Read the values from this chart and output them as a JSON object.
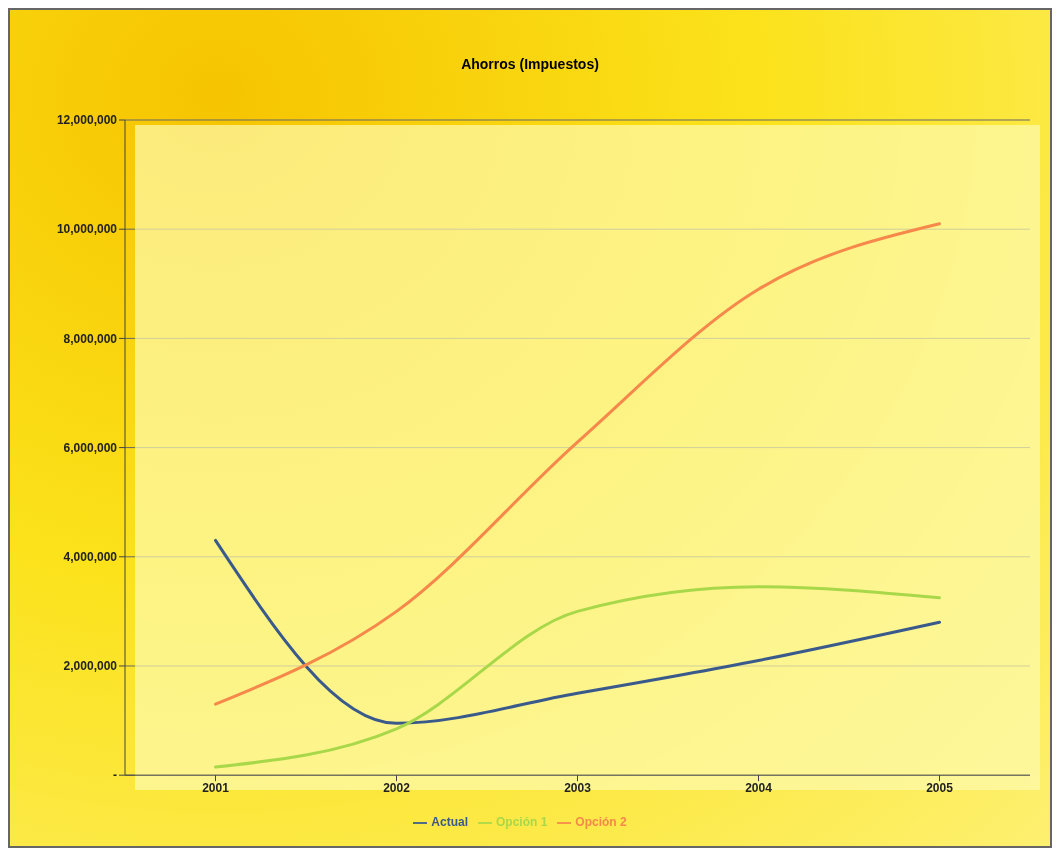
{
  "chart_data": {
    "type": "line",
    "title": "Ahorros (Impuestos)",
    "categories": [
      "2001",
      "2002",
      "2003",
      "2004",
      "2005"
    ],
    "series": [
      {
        "name": "Actual",
        "color": "#3a5a8c",
        "values": [
          4300000,
          950000,
          1500000,
          2100000,
          2800000
        ]
      },
      {
        "name": "Opción 1",
        "color": "#a8d84a",
        "values": [
          150000,
          850000,
          3000000,
          3450000,
          3250000
        ]
      },
      {
        "name": "Opción 2",
        "color": "#f5884a",
        "values": [
          1300000,
          3000000,
          6100000,
          8900000,
          10100000
        ]
      }
    ],
    "ylim": [
      0,
      12000000
    ],
    "yticks": [
      {
        "value": 0,
        "label": "-"
      },
      {
        "value": 2000000,
        "label": "2,000,000"
      },
      {
        "value": 4000000,
        "label": "4,000,000"
      },
      {
        "value": 6000000,
        "label": "6,000,000"
      },
      {
        "value": 8000000,
        "label": "8,000,000"
      },
      {
        "value": 10000000,
        "label": "10,000,000"
      },
      {
        "value": 12000000,
        "label": "12,000,000"
      }
    ],
    "grid": "y",
    "legend": "bottom",
    "marker": "none",
    "line_style": "solid"
  }
}
